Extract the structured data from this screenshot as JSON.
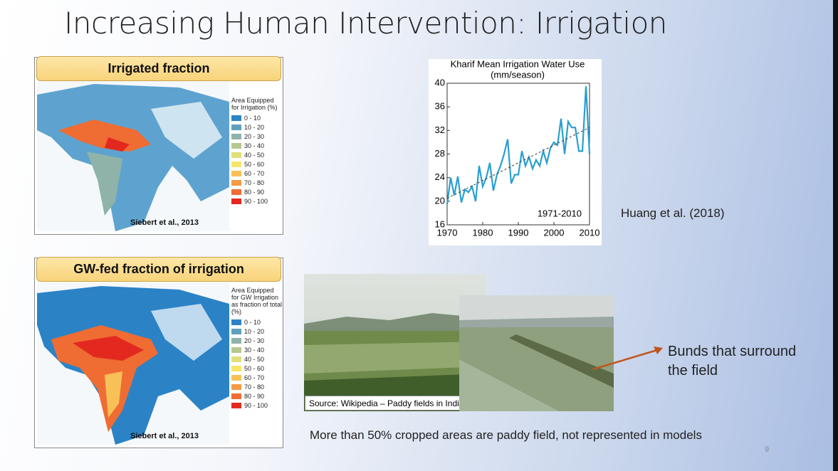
{
  "title": "Increasing Human Intervention: Irrigation",
  "panels": [
    {
      "heading": "Irrigated fraction",
      "legend_title": "Area Equipped for Irrigation (%)",
      "citation": "Siebert et al., 2013",
      "legend": [
        {
          "label": "0 - 10",
          "color": "#2b83c6"
        },
        {
          "label": "10 - 20",
          "color": "#5f9fbf"
        },
        {
          "label": "20 - 30",
          "color": "#8fb3a8"
        },
        {
          "label": "30 - 40",
          "color": "#b5c78e"
        },
        {
          "label": "40 - 50",
          "color": "#dfe07a"
        },
        {
          "label": "50 - 60",
          "color": "#f7e56a"
        },
        {
          "label": "60 - 70",
          "color": "#f8c157"
        },
        {
          "label": "70 - 80",
          "color": "#f59a45"
        },
        {
          "label": "80 - 90",
          "color": "#ef6c33"
        },
        {
          "label": "90 - 100",
          "color": "#e3291f"
        }
      ]
    },
    {
      "heading": "GW-fed fraction of irrigation",
      "legend_title": "Area Equipped for GW Irrigation as fraction of total (%)",
      "citation": "Siebert et al., 2013",
      "legend": [
        {
          "label": "0 - 10",
          "color": "#2b83c6"
        },
        {
          "label": "10 - 20",
          "color": "#5f9fbf"
        },
        {
          "label": "20 - 30",
          "color": "#8fb3a8"
        },
        {
          "label": "30 - 40",
          "color": "#b5c78e"
        },
        {
          "label": "40 - 50",
          "color": "#dfe07a"
        },
        {
          "label": "50 - 60",
          "color": "#f7e56a"
        },
        {
          "label": "60 - 70",
          "color": "#f8c157"
        },
        {
          "label": "70 - 80",
          "color": "#f59a45"
        },
        {
          "label": "80 - 90",
          "color": "#ef6c33"
        },
        {
          "label": "90 - 100",
          "color": "#e3291f"
        }
      ]
    }
  ],
  "chart_data": {
    "type": "line",
    "title": "Kharif Mean Irrigation Water Use",
    "subtitle": "(mm/season)",
    "annotation": "1971-2010",
    "x": [
      1970,
      1971,
      1972,
      1973,
      1974,
      1975,
      1976,
      1977,
      1978,
      1979,
      1980,
      1981,
      1982,
      1983,
      1984,
      1985,
      1986,
      1987,
      1988,
      1989,
      1990,
      1991,
      1992,
      1993,
      1994,
      1995,
      1996,
      1997,
      1998,
      1999,
      2000,
      2001,
      2002,
      2003,
      2004,
      2005,
      2006,
      2007,
      2008,
      2009,
      2010
    ],
    "series": [
      {
        "color": "#2a9fd0",
        "values": [
          19.5,
          24,
          21,
          24.2,
          19.8,
          22,
          21.5,
          22.5,
          20,
          26,
          22.5,
          24,
          26.5,
          21.8,
          24.5,
          26,
          28,
          30.5,
          23,
          24.5,
          24.5,
          28.5,
          26,
          27.5,
          25.5,
          27,
          26,
          28.5,
          26.5,
          29,
          30,
          29.5,
          34,
          28,
          33.5,
          32.5,
          32.5,
          28.5,
          28.5,
          39.5,
          28
        ]
      }
    ],
    "trend": {
      "color": "#333333",
      "x": [
        1970,
        2010
      ],
      "values": [
        20.5,
        32.5
      ]
    },
    "xlim": [
      1970,
      2010
    ],
    "xticks": [
      1970,
      1980,
      1990,
      2000,
      2010
    ],
    "ylim": [
      16,
      40
    ],
    "yticks": [
      16,
      20,
      24,
      28,
      32,
      36,
      40
    ]
  },
  "chart_citation": "Huang et al. (2018)",
  "photo_caption": "Source: Wikipedia – Paddy fields in India",
  "callout": "Bunds that surround the field",
  "footer_text": "More than 50% cropped areas are paddy field, not represented in models",
  "page_number": "9"
}
